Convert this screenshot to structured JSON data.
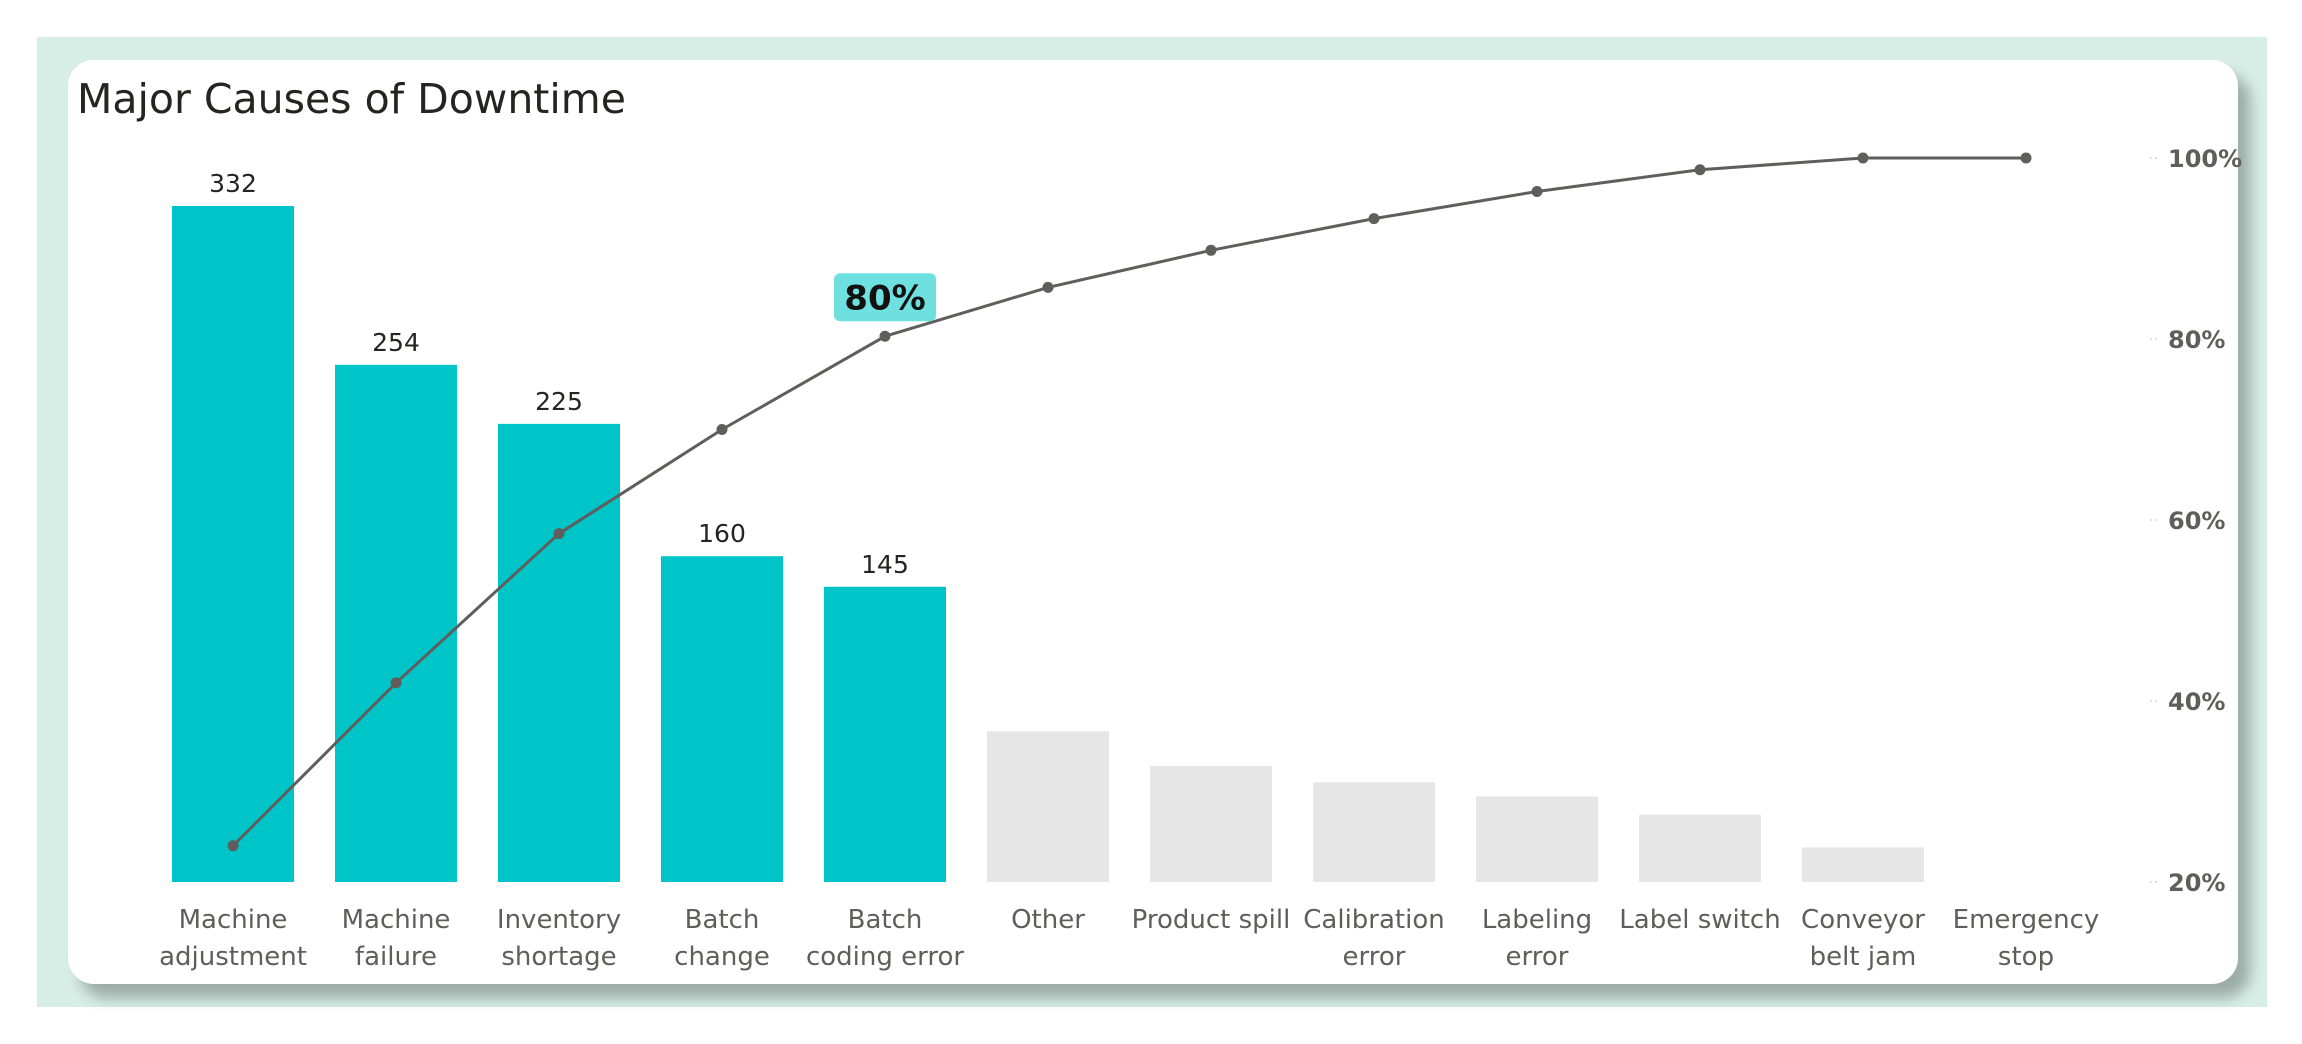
{
  "chart_data": {
    "type": "bar",
    "title": "Major Causes of Downtime",
    "categories": [
      [
        "Machine",
        "adjustment"
      ],
      [
        "Machine",
        "failure"
      ],
      [
        "Inventory",
        "shortage"
      ],
      [
        "Batch",
        "change"
      ],
      [
        "Batch",
        "coding error"
      ],
      [
        "Other"
      ],
      [
        "Product spill"
      ],
      [
        "Calibration",
        "error"
      ],
      [
        "Labeling",
        "error"
      ],
      [
        "Label switch"
      ],
      [
        "Conveyor",
        "belt jam"
      ],
      [
        "Emergency",
        "stop"
      ]
    ],
    "series": [
      {
        "type": "bar",
        "values": [
          332,
          254,
          225,
          160,
          145,
          74,
          57,
          49,
          42,
          33,
          17,
          0
        ],
        "data_labels": [
          "332",
          "254",
          "225",
          "160",
          "145",
          "",
          "",
          "",
          "",
          "",
          "",
          ""
        ],
        "highlight_count": 5
      },
      {
        "type": "line",
        "axis": "right",
        "values": [
          24,
          42,
          58.5,
          70,
          80.3,
          85.7,
          89.8,
          93.3,
          96.3,
          98.7,
          100,
          100
        ]
      }
    ],
    "right_axis": {
      "ticks": [
        "20%",
        "40%",
        "60%",
        "80%",
        "100%"
      ],
      "tick_values": [
        20,
        40,
        60,
        80,
        100
      ],
      "ylim": [
        20,
        100
      ]
    },
    "left_axis": {
      "ylim": [
        0,
        350
      ]
    },
    "annotation": {
      "text": "80%",
      "index": 4
    },
    "colors": {
      "highlight_bar": "#00c5c8",
      "other_bar": "#e6e6e6",
      "line": "#605e5c",
      "callout_bg": "#6fe0e0",
      "frame": "#d7eee6"
    },
    "grid": false,
    "legend": "none"
  }
}
